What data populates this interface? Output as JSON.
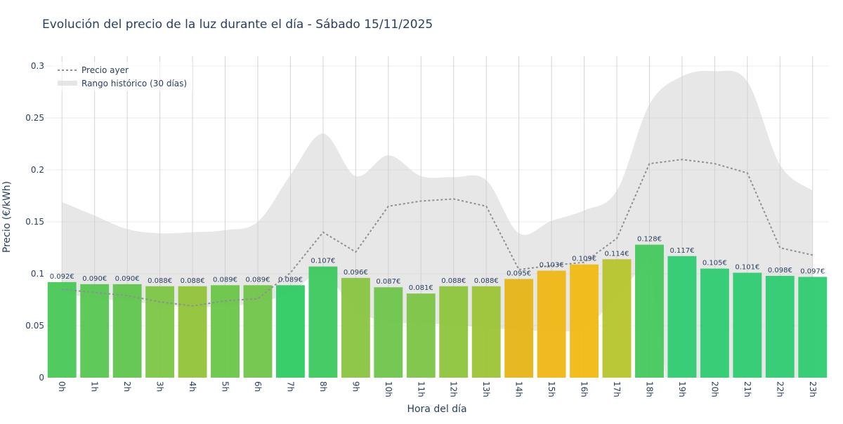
{
  "chart_data": {
    "type": "bar",
    "title": "Evolución del precio de la luz durante el día - Sábado 15/11/2025",
    "xlabel": "Hora del día",
    "ylabel": "Precio (€/kWh)",
    "ylim": [
      0,
      0.31
    ],
    "yticks": [
      0,
      0.05,
      0.1,
      0.15,
      0.2,
      0.25,
      0.3
    ],
    "ytick_labels": [
      "0",
      "0.05",
      "0.1",
      "0.15",
      "0.2",
      "0.25",
      "0.3"
    ],
    "grid": true,
    "legend_position": "top-left",
    "categories": [
      "0h",
      "1h",
      "2h",
      "3h",
      "4h",
      "5h",
      "6h",
      "7h",
      "8h",
      "9h",
      "10h",
      "11h",
      "12h",
      "13h",
      "14h",
      "15h",
      "16h",
      "17h",
      "18h",
      "19h",
      "20h",
      "21h",
      "22h",
      "23h"
    ],
    "series": [
      {
        "type": "bar",
        "values": [
          0.092,
          0.09,
          0.09,
          0.088,
          0.088,
          0.089,
          0.089,
          0.089,
          0.107,
          0.096,
          0.087,
          0.081,
          0.088,
          0.088,
          0.095,
          0.103,
          0.109,
          0.114,
          0.128,
          0.117,
          0.105,
          0.101,
          0.098,
          0.097
        ],
        "labels": [
          "0.092€",
          "0.090€",
          "0.090€",
          "0.088€",
          "0.088€",
          "0.089€",
          "0.089€",
          "0.089€",
          "0.107€",
          "0.096€",
          "0.087€",
          "0.081€",
          "0.088€",
          "0.088€",
          "0.095€",
          "0.103€",
          "0.109€",
          "0.114€",
          "0.128€",
          "0.117€",
          "0.105€",
          "0.101€",
          "0.098€",
          "0.097€"
        ],
        "colors": [
          "#48c857",
          "#56c651",
          "#5fc54d",
          "#7bc643",
          "#91c339",
          "#6ac649",
          "#6fc54a",
          "#2fcb63",
          "#3cc95e",
          "#88c440",
          "#6fc54b",
          "#7dc444",
          "#8dc53c",
          "#9cc436",
          "#e7b416",
          "#eeb714",
          "#f1b913",
          "#b6c42c",
          "#45c85c",
          "#2ecc71",
          "#2ecc71",
          "#2ecc71",
          "#2ecc71",
          "#2ecc71"
        ]
      },
      {
        "name": "Precio ayer",
        "type": "line",
        "style": "dotted",
        "color": "#8c9097",
        "values": [
          0.085,
          0.082,
          0.079,
          0.073,
          0.069,
          0.074,
          0.076,
          0.101,
          0.14,
          0.121,
          0.165,
          0.17,
          0.172,
          0.165,
          0.104,
          0.108,
          0.111,
          0.134,
          0.206,
          0.21,
          0.206,
          0.197,
          0.125,
          0.118
        ]
      },
      {
        "name": "Rango histórico (30 días)",
        "type": "area",
        "color": "#cfcfcf",
        "upper": [
          0.169,
          0.156,
          0.143,
          0.139,
          0.14,
          0.142,
          0.15,
          0.195,
          0.235,
          0.194,
          0.214,
          0.194,
          0.193,
          0.19,
          0.139,
          0.151,
          0.161,
          0.18,
          0.263,
          0.29,
          0.295,
          0.285,
          0.205,
          0.18
        ],
        "lower": [
          0.082,
          0.076,
          0.074,
          0.07,
          0.068,
          0.069,
          0.072,
          0.082,
          0.1,
          0.065,
          0.054,
          0.052,
          0.051,
          0.048,
          0.046,
          0.045,
          0.048,
          0.078,
          0.117,
          null,
          null,
          null,
          null,
          null
        ]
      }
    ]
  }
}
